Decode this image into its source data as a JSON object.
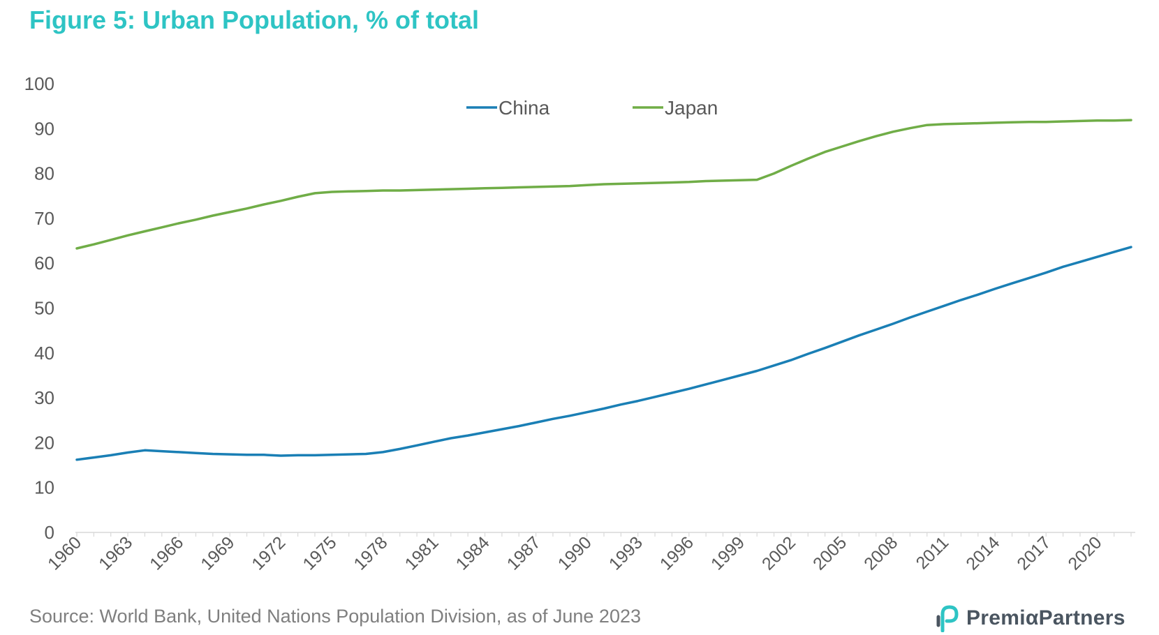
{
  "title": "Figure 5: Urban Population, % of total",
  "source": "Source: World Bank, United Nations Population Division, as of June 2023",
  "brand": {
    "name": "PremiαPartners",
    "icon": "premia-logo-icon"
  },
  "colors": {
    "title": "#2ec4c4",
    "china": "#1a7fb5",
    "japan": "#70ad47",
    "axis": "#595959"
  },
  "chart_data": {
    "type": "line",
    "title": "Figure 5: Urban Population, % of total",
    "xlabel": "",
    "ylabel": "",
    "ylim": [
      0,
      100
    ],
    "yticks": [
      0,
      10,
      20,
      30,
      40,
      50,
      60,
      70,
      80,
      90,
      100
    ],
    "xtick_labels": [
      "1960",
      "1963",
      "1966",
      "1969",
      "1972",
      "1975",
      "1978",
      "1981",
      "1984",
      "1987",
      "1990",
      "1993",
      "1996",
      "1999",
      "2002",
      "2005",
      "2008",
      "2011",
      "2014",
      "2017",
      "2020"
    ],
    "legend_position": "top-center",
    "grid": false,
    "x": [
      1960,
      1961,
      1962,
      1963,
      1964,
      1965,
      1966,
      1967,
      1968,
      1969,
      1970,
      1971,
      1972,
      1973,
      1974,
      1975,
      1976,
      1977,
      1978,
      1979,
      1980,
      1981,
      1982,
      1983,
      1984,
      1985,
      1986,
      1987,
      1988,
      1989,
      1990,
      1991,
      1992,
      1993,
      1994,
      1995,
      1996,
      1997,
      1998,
      1999,
      2000,
      2001,
      2002,
      2003,
      2004,
      2005,
      2006,
      2007,
      2008,
      2009,
      2010,
      2011,
      2012,
      2013,
      2014,
      2015,
      2016,
      2017,
      2018,
      2019,
      2020,
      2021,
      2022
    ],
    "series": [
      {
        "name": "China",
        "color": "#1a7fb5",
        "values": [
          16.2,
          16.7,
          17.2,
          17.8,
          18.3,
          18.1,
          17.9,
          17.7,
          17.5,
          17.4,
          17.3,
          17.3,
          17.1,
          17.2,
          17.2,
          17.3,
          17.4,
          17.5,
          17.9,
          18.6,
          19.4,
          20.2,
          21.0,
          21.6,
          22.3,
          23.0,
          23.7,
          24.5,
          25.3,
          26.0,
          26.8,
          27.6,
          28.5,
          29.3,
          30.2,
          31.1,
          32.0,
          33.0,
          34.0,
          35.0,
          36.0,
          37.2,
          38.4,
          39.8,
          41.1,
          42.5,
          43.9,
          45.2,
          46.5,
          47.9,
          49.2,
          50.5,
          51.8,
          53.0,
          54.3,
          55.5,
          56.7,
          57.9,
          59.2,
          60.3,
          61.4,
          62.5,
          63.6
        ]
      },
      {
        "name": "Japan",
        "color": "#70ad47",
        "values": [
          63.3,
          64.2,
          65.2,
          66.2,
          67.1,
          68.0,
          68.9,
          69.7,
          70.6,
          71.4,
          72.2,
          73.1,
          73.9,
          74.8,
          75.6,
          75.9,
          76.0,
          76.1,
          76.2,
          76.2,
          76.3,
          76.4,
          76.5,
          76.6,
          76.7,
          76.8,
          76.9,
          77.0,
          77.1,
          77.2,
          77.4,
          77.6,
          77.7,
          77.8,
          77.9,
          78.0,
          78.1,
          78.3,
          78.4,
          78.5,
          78.6,
          80.0,
          81.7,
          83.3,
          84.8,
          86.0,
          87.2,
          88.3,
          89.3,
          90.1,
          90.8,
          91.0,
          91.1,
          91.2,
          91.3,
          91.4,
          91.5,
          91.5,
          91.6,
          91.7,
          91.8,
          91.8,
          91.9
        ]
      }
    ]
  }
}
